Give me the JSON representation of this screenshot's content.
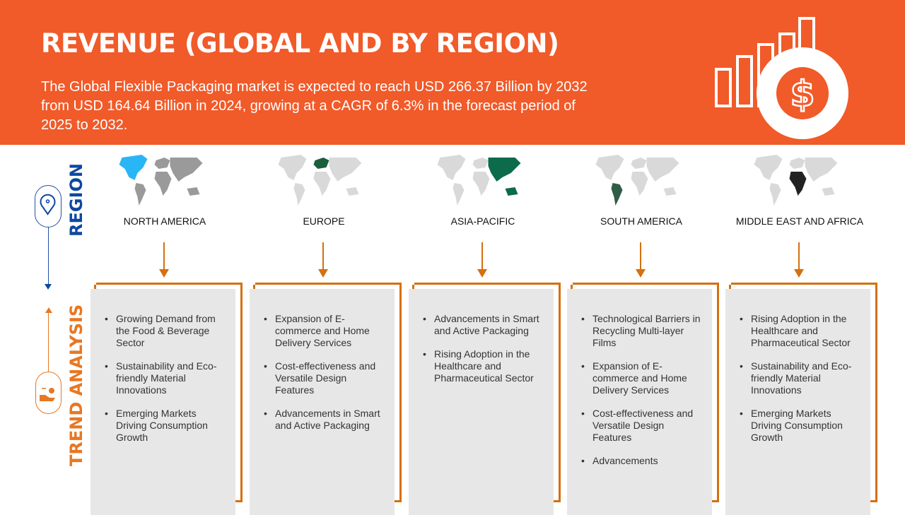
{
  "header": {
    "title": "REVENUE (GLOBAL AND BY REGION)",
    "subtitle": "The Global Flexible Packaging market is expected to reach USD 266.37 Billion by 2032 from USD 164.64 Billion in 2024, growing at a CAGR of 6.3% in the forecast period of 2025 to 2032.",
    "icon": "revenue-bar-chart-dollar-icon"
  },
  "side": {
    "region_label": "REGION",
    "trend_label": "TREND ANALYSIS"
  },
  "colors": {
    "header": "#F15A29",
    "region_blue": "#0D47A1",
    "trend_orange": "#E87722",
    "bracket": "#D4700F",
    "card": "#E7E7E7"
  },
  "regions": [
    {
      "name": "NORTH AMERICA",
      "highlight": "#29B6F6",
      "trends": [
        "Growing Demand from the Food & Beverage Sector",
        "Sustainability and Eco-friendly Material Innovations",
        "Emerging Markets Driving Consumption Growth"
      ]
    },
    {
      "name": "EUROPE",
      "highlight": "#1B5E3B",
      "trends": [
        "Expansion of E-commerce and Home Delivery Services",
        "Cost-effectiveness and Versatile Design Features",
        "Advancements in Smart and Active Packaging"
      ]
    },
    {
      "name": "ASIA-PACIFIC",
      "highlight": "#0B6B4A",
      "trends": [
        "Advancements in Smart and Active Packaging",
        "Rising Adoption in the Healthcare and Pharmaceutical Sector"
      ]
    },
    {
      "name": "SOUTH AMERICA",
      "highlight": "#2F5D45",
      "trends": [
        "Technological Barriers in Recycling Multi-layer Films",
        "Expansion of E-commerce and Home Delivery Services",
        "Cost-effectiveness and Versatile Design Features",
        "Advancements"
      ]
    },
    {
      "name": "MIDDLE EAST AND AFRICA",
      "highlight": "#222222",
      "trends": [
        "Rising Adoption in the Healthcare and Pharmaceutical Sector",
        "Sustainability and Eco-friendly Material Innovations",
        "Emerging Markets Driving Consumption Growth"
      ]
    }
  ]
}
